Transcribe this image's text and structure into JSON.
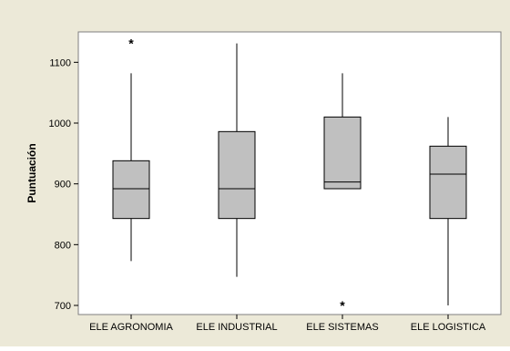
{
  "chart_data": {
    "type": "box",
    "title": "",
    "xlabel": "",
    "ylabel": "Puntuación",
    "ylim": [
      685,
      1150
    ],
    "yticks": [
      700,
      800,
      900,
      1000,
      1100
    ],
    "grid": false,
    "legend": "none",
    "categories": [
      "ELE AGRONOMIA",
      "ELE INDUSTRIAL",
      "ELE SISTEMAS",
      "ELE LOGISTICA"
    ],
    "boxes": [
      {
        "category": "ELE AGRONOMIA",
        "whisker_low": 773,
        "q1": 843,
        "median": 892,
        "q3": 938,
        "whisker_high": 1082,
        "outliers": [
          1131
        ]
      },
      {
        "category": "ELE INDUSTRIAL",
        "whisker_low": 747,
        "q1": 843,
        "median": 892,
        "q3": 986,
        "whisker_high": 1131,
        "outliers": []
      },
      {
        "category": "ELE SISTEMAS",
        "whisker_low": 892,
        "q1": 892,
        "median": 903,
        "q3": 1010,
        "whisker_high": 1082,
        "outliers": [
          700
        ]
      },
      {
        "category": "ELE LOGISTICA",
        "whisker_low": 700,
        "q1": 843,
        "median": 916,
        "q3": 962,
        "whisker_high": 1010,
        "outliers": []
      }
    ],
    "colors": {
      "background": "#ECE9D8",
      "plot_area": "#FFFFFF",
      "box_fill": "#C0C0C0",
      "stroke": "#000000"
    }
  }
}
